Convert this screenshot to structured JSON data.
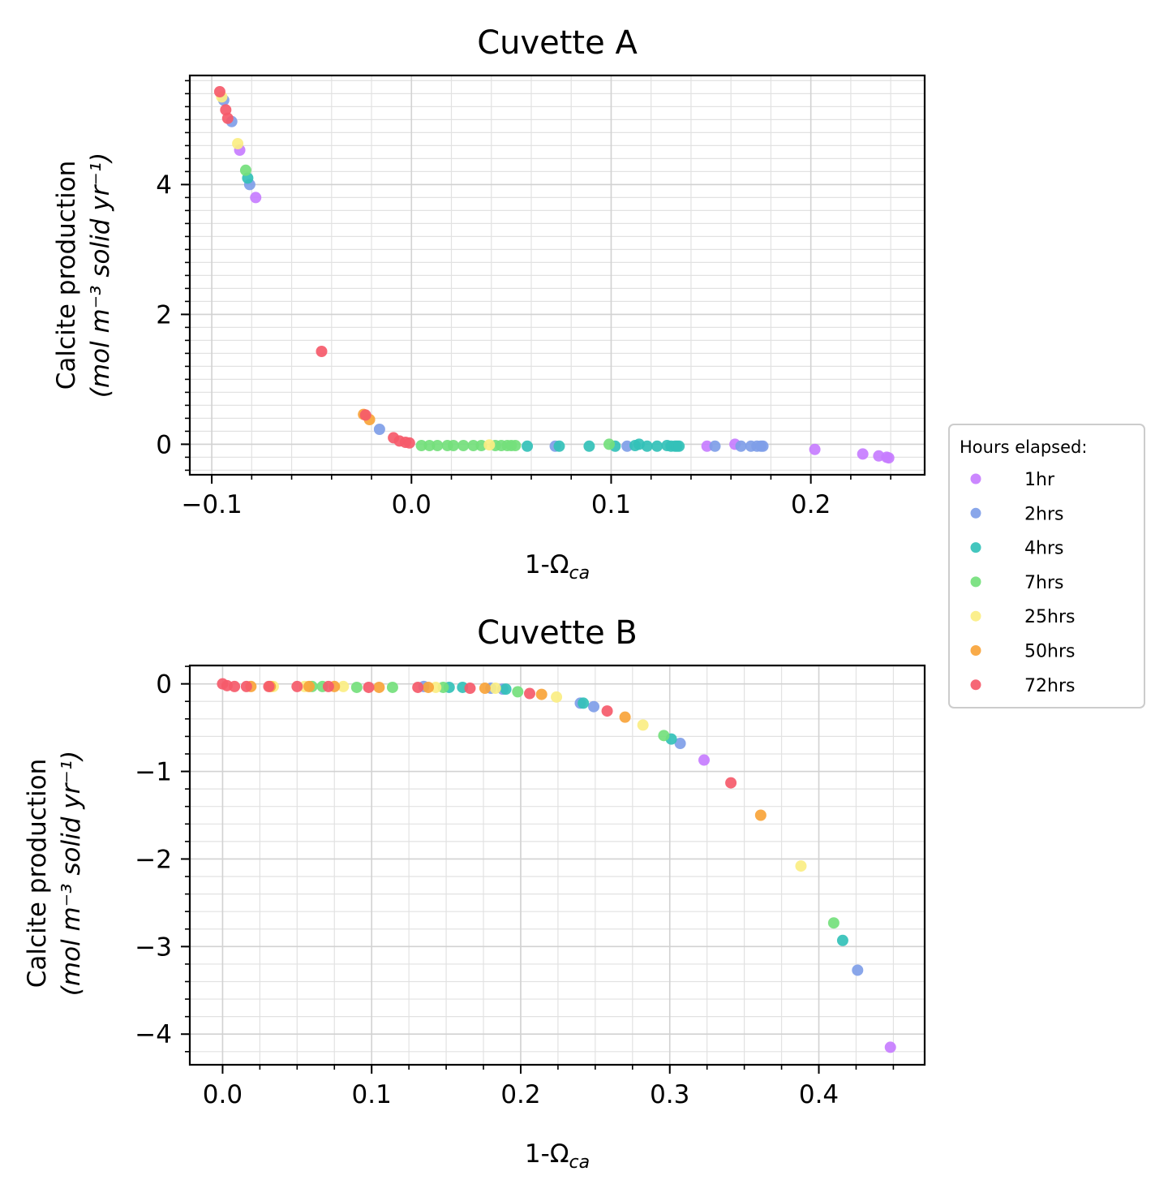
{
  "legend": {
    "title": "Hours elapsed:",
    "placement": "right, centered between panels",
    "entries": [
      {
        "label": "1hr",
        "color": "#c77dff"
      },
      {
        "label": "2hrs",
        "color": "#7f9ee8"
      },
      {
        "label": "4hrs",
        "color": "#33c1b8"
      },
      {
        "label": "7hrs",
        "color": "#74e07c"
      },
      {
        "label": "25hrs",
        "color": "#fbee83"
      },
      {
        "label": "50hrs",
        "color": "#f9a43a"
      },
      {
        "label": "72hrs",
        "color": "#f55a6a"
      }
    ]
  },
  "chart_data": [
    {
      "type": "scatter",
      "title": "Cuvette A",
      "xlabel": "1-Ω_ca",
      "xlabel_main": "1-Ω",
      "xlabel_sub": "ca",
      "ylabel": "Calcite production",
      "ylabel_unit": "(mol m⁻³ solid yr⁻¹)",
      "xlim": [
        -0.111,
        0.257
      ],
      "ylim": [
        -0.47,
        5.68
      ],
      "xticks": [
        -0.1,
        0.0,
        0.1,
        0.2
      ],
      "xtick_labels": [
        "−0.1",
        "0.0",
        "0.1",
        "0.2"
      ],
      "yticks": [
        0,
        2,
        4
      ],
      "ytick_labels": [
        "0",
        "2",
        "4"
      ],
      "grid": true,
      "series": [
        {
          "name": "1hr",
          "points": [
            [
              -0.086,
              4.53
            ],
            [
              -0.078,
              3.8
            ],
            [
              0.148,
              -0.03
            ],
            [
              0.162,
              0.0
            ],
            [
              0.202,
              -0.08
            ],
            [
              0.226,
              -0.15
            ],
            [
              0.234,
              -0.18
            ],
            [
              0.238,
              -0.2
            ],
            [
              0.239,
              -0.21
            ]
          ]
        },
        {
          "name": "2hrs",
          "points": [
            [
              -0.094,
              5.3
            ],
            [
              -0.09,
              4.97
            ],
            [
              -0.081,
              4.0
            ],
            [
              -0.016,
              0.23
            ],
            [
              0.072,
              -0.03
            ],
            [
              0.108,
              -0.03
            ],
            [
              0.152,
              -0.03
            ],
            [
              0.165,
              -0.03
            ],
            [
              0.17,
              -0.03
            ],
            [
              0.173,
              -0.03
            ],
            [
              0.175,
              -0.03
            ],
            [
              0.176,
              -0.03
            ]
          ]
        },
        {
          "name": "4hrs",
          "points": [
            [
              -0.082,
              4.1
            ],
            [
              0.058,
              -0.03
            ],
            [
              0.074,
              -0.03
            ],
            [
              0.089,
              -0.03
            ],
            [
              0.102,
              -0.03
            ],
            [
              0.112,
              -0.02
            ],
            [
              0.114,
              0.0
            ],
            [
              0.118,
              -0.03
            ],
            [
              0.123,
              -0.03
            ],
            [
              0.128,
              -0.02
            ],
            [
              0.13,
              -0.03
            ],
            [
              0.132,
              -0.03
            ],
            [
              0.133,
              -0.03
            ],
            [
              0.134,
              -0.03
            ]
          ]
        },
        {
          "name": "7hrs",
          "points": [
            [
              -0.083,
              4.22
            ],
            [
              0.005,
              -0.02
            ],
            [
              0.009,
              -0.02
            ],
            [
              0.013,
              -0.02
            ],
            [
              0.018,
              -0.02
            ],
            [
              0.021,
              -0.02
            ],
            [
              0.026,
              -0.02
            ],
            [
              0.031,
              -0.02
            ],
            [
              0.035,
              -0.02
            ],
            [
              0.042,
              -0.02
            ],
            [
              0.045,
              -0.02
            ],
            [
              0.048,
              -0.02
            ],
            [
              0.05,
              -0.02
            ],
            [
              0.052,
              -0.02
            ],
            [
              0.099,
              0.0
            ]
          ]
        },
        {
          "name": "25hrs",
          "points": [
            [
              -0.095,
              5.35
            ],
            [
              -0.087,
              4.63
            ],
            [
              0.039,
              -0.01
            ]
          ]
        },
        {
          "name": "50hrs",
          "points": [
            [
              -0.024,
              0.46
            ],
            [
              -0.021,
              0.38
            ]
          ]
        },
        {
          "name": "72hrs",
          "points": [
            [
              -0.096,
              5.43
            ],
            [
              -0.093,
              5.15
            ],
            [
              -0.092,
              5.02
            ],
            [
              -0.045,
              1.43
            ],
            [
              -0.023,
              0.45
            ],
            [
              -0.009,
              0.1
            ],
            [
              -0.006,
              0.05
            ],
            [
              -0.003,
              0.03
            ],
            [
              -0.001,
              0.02
            ]
          ]
        }
      ]
    },
    {
      "type": "scatter",
      "title": "Cuvette B",
      "xlabel": "1-Ω_ca",
      "xlabel_main": "1-Ω",
      "xlabel_sub": "ca",
      "ylabel": "Calcite production",
      "ylabel_unit": "(mol m⁻³ solid yr⁻¹)",
      "xlim": [
        -0.022,
        0.471
      ],
      "ylim": [
        -4.35,
        0.21
      ],
      "xticks": [
        0.0,
        0.1,
        0.2,
        0.3,
        0.4
      ],
      "xtick_labels": [
        "0.0",
        "0.1",
        "0.2",
        "0.3",
        "0.4"
      ],
      "yticks": [
        0,
        -1,
        -2,
        -3,
        -4
      ],
      "ytick_labels": [
        "0",
        "−1",
        "−2",
        "−3",
        "−4"
      ],
      "grid": true,
      "series": [
        {
          "name": "1hr",
          "points": [
            [
              0.323,
              -0.87
            ],
            [
              0.448,
              -4.15
            ]
          ]
        },
        {
          "name": "2hrs",
          "points": [
            [
              0.135,
              -0.03
            ],
            [
              0.18,
              -0.05
            ],
            [
              0.188,
              -0.06
            ],
            [
              0.24,
              -0.22
            ],
            [
              0.249,
              -0.26
            ],
            [
              0.307,
              -0.68
            ],
            [
              0.426,
              -3.27
            ]
          ]
        },
        {
          "name": "4hrs",
          "points": [
            [
              0.152,
              -0.04
            ],
            [
              0.161,
              -0.04
            ],
            [
              0.19,
              -0.06
            ],
            [
              0.242,
              -0.22
            ],
            [
              0.301,
              -0.63
            ],
            [
              0.416,
              -2.93
            ]
          ]
        },
        {
          "name": "7hrs",
          "points": [
            [
              0.06,
              -0.03
            ],
            [
              0.067,
              -0.03
            ],
            [
              0.09,
              -0.04
            ],
            [
              0.114,
              -0.04
            ],
            [
              0.148,
              -0.04
            ],
            [
              0.198,
              -0.09
            ],
            [
              0.296,
              -0.59
            ],
            [
              0.41,
              -2.73
            ]
          ]
        },
        {
          "name": "25hrs",
          "points": [
            [
              0.034,
              -0.03
            ],
            [
              0.055,
              -0.03
            ],
            [
              0.081,
              -0.03
            ],
            [
              0.143,
              -0.04
            ],
            [
              0.183,
              -0.05
            ],
            [
              0.224,
              -0.15
            ],
            [
              0.282,
              -0.47
            ],
            [
              0.388,
              -2.08
            ]
          ]
        },
        {
          "name": "50hrs",
          "points": [
            [
              0.019,
              -0.03
            ],
            [
              0.032,
              -0.03
            ],
            [
              0.058,
              -0.03
            ],
            [
              0.075,
              -0.03
            ],
            [
              0.105,
              -0.04
            ],
            [
              0.138,
              -0.04
            ],
            [
              0.176,
              -0.05
            ],
            [
              0.214,
              -0.12
            ],
            [
              0.27,
              -0.38
            ],
            [
              0.361,
              -1.5
            ]
          ]
        },
        {
          "name": "72hrs",
          "points": [
            [
              0.0,
              0.0
            ],
            [
              0.003,
              -0.02
            ],
            [
              0.008,
              -0.03
            ],
            [
              0.016,
              -0.03
            ],
            [
              0.031,
              -0.03
            ],
            [
              0.05,
              -0.03
            ],
            [
              0.071,
              -0.03
            ],
            [
              0.098,
              -0.04
            ],
            [
              0.131,
              -0.04
            ],
            [
              0.166,
              -0.05
            ],
            [
              0.206,
              -0.11
            ],
            [
              0.258,
              -0.31
            ],
            [
              0.341,
              -1.13
            ]
          ]
        }
      ]
    }
  ]
}
